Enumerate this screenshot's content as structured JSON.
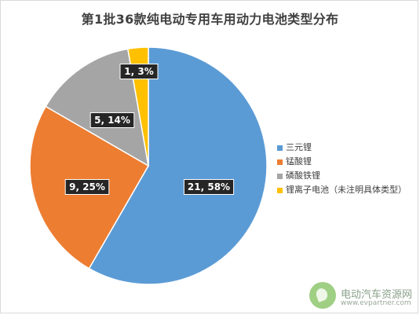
{
  "title": "第1批36款纯电动专用车用动力电池类型分布",
  "chart_data": {
    "type": "pie",
    "title": "第1批36款纯电动专用车用动力电池类型分布",
    "legend_position": "right",
    "slices": [
      {
        "name": "三元锂",
        "value": 21,
        "percent": 58,
        "label": "21, 58%",
        "color": "#5b9bd5"
      },
      {
        "name": "锰酸锂",
        "value": 9,
        "percent": 25,
        "label": "9, 25%",
        "color": "#ed7d31"
      },
      {
        "name": "磷酸铁锂",
        "value": 5,
        "percent": 14,
        "label": "5, 14%",
        "color": "#a5a5a5"
      },
      {
        "name": "锂离子电池（未注明具体类型）",
        "value": 1,
        "percent": 3,
        "label": "1, 3%",
        "color": "#ffc000"
      }
    ]
  },
  "legend": {
    "items": [
      {
        "label": "三元锂",
        "color": "#5b9bd5"
      },
      {
        "label": "锰酸锂",
        "color": "#ed7d31"
      },
      {
        "label": "磷酸铁锂",
        "color": "#a5a5a5"
      },
      {
        "label": "锂离子电池（未注明具体类型）",
        "color": "#ffc000"
      }
    ]
  },
  "watermark": {
    "name": "电动汽车资源网",
    "url": "www.evpartner.com"
  }
}
